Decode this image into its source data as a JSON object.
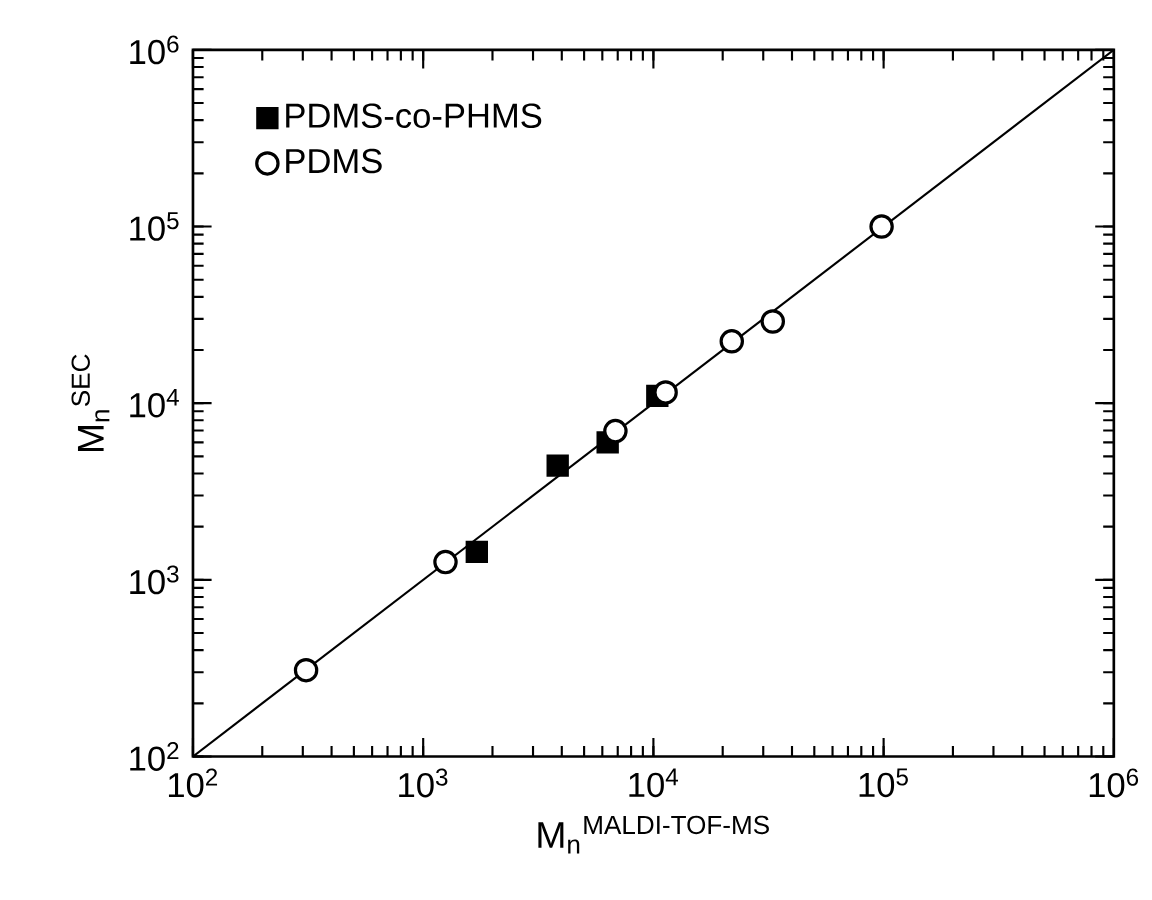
{
  "chart_data": {
    "type": "scatter",
    "xlabel": "M$_{n}$$^{MALDI-TOF-MS}$",
    "ylabel": "M$_{n}$$^{SEC}$",
    "log": "xy",
    "legend": "top left",
    "grid": false,
    "xlim": [
      100,
      1000000
    ],
    "ylim": [
      100,
      1000000
    ],
    "xticks": [
      {
        "value": 100,
        "label": "10$^{2}$"
      },
      {
        "value": 1000,
        "label": "10$^{3}$"
      },
      {
        "value": 10000,
        "label": "10$^{4}$"
      },
      {
        "value": 100000,
        "label": "10$^{5}$"
      },
      {
        "value": 1000000,
        "label": "10$^{6}$"
      }
    ],
    "yticks": [
      {
        "value": 100,
        "label": "10$^{2}$"
      },
      {
        "value": 1000,
        "label": "10$^{3}$"
      },
      {
        "value": 10000,
        "label": "10$^{4}$"
      },
      {
        "value": 100000,
        "label": "10$^{5}$"
      },
      {
        "value": 1000000,
        "label": "10$^{6}$"
      }
    ],
    "series": [
      {
        "type": "line",
        "color": "#000000",
        "marker": "none",
        "line_style": "solid",
        "x": [
          100,
          1000000
        ],
        "values": [
          100,
          1000000
        ]
      },
      {
        "name": "PDMS-co-PHMS",
        "color": "#000000",
        "marker": "square",
        "x": [
          1710,
          3840,
          6330,
          10400
        ],
        "values": [
          1440,
          4430,
          6000,
          11000
        ]
      },
      {
        "name": "PDMS",
        "color": "#000000",
        "marker": "circle",
        "x": [
          310,
          1250,
          6840,
          11300,
          21900,
          33000,
          98000
        ],
        "values": [
          308,
          1260,
          6950,
          11500,
          22400,
          29000,
          100000
        ]
      }
    ]
  }
}
